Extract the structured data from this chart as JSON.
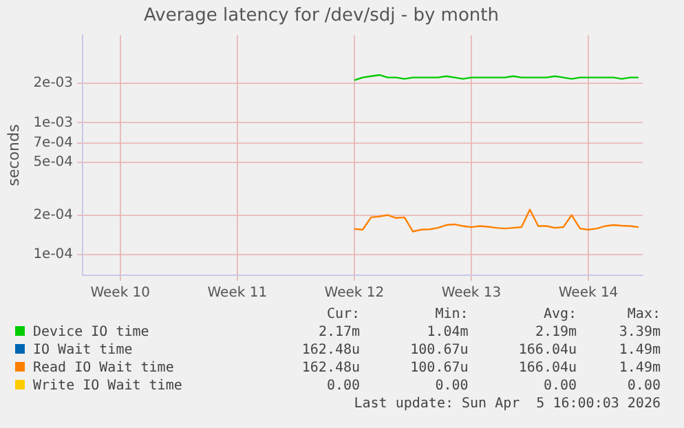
{
  "chart_data": {
    "type": "line",
    "title": "Average latency for /dev/sdj - by month",
    "ylabel": "seconds",
    "log": "y",
    "grid": true,
    "legend": "bottom",
    "marker": "none",
    "line_style": "solid",
    "categories": [
      null,
      null,
      null,
      null,
      "Week 10",
      null,
      null,
      null,
      null,
      null,
      null,
      null,
      null,
      null,
      null,
      null,
      null,
      null,
      "Week 11",
      null,
      null,
      null,
      null,
      null,
      null,
      null,
      null,
      null,
      null,
      null,
      null,
      null,
      "Week 12",
      null,
      null,
      null,
      null,
      null,
      null,
      null,
      null,
      null,
      null,
      null,
      null,
      null,
      "Week 13",
      null,
      null,
      null,
      null,
      null,
      null,
      null,
      null,
      null,
      null,
      null,
      null,
      null,
      "Week 14",
      null,
      null,
      null,
      null,
      null,
      null
    ],
    "ylim": [
      7.5e-05,
      0.0046
    ],
    "yticks": [
      {
        "value": 0.0001,
        "label": "1e-04"
      },
      {
        "value": 0.0002,
        "label": "2e-04"
      },
      {
        "value": 0.0005,
        "label": "5e-04"
      },
      {
        "value": 0.0007,
        "label": "7e-04"
      },
      {
        "value": 0.001,
        "label": "1e-03"
      },
      {
        "value": 0.002,
        "label": "2e-03"
      }
    ],
    "series": [
      {
        "name": "Device IO time",
        "color": "#00cc00",
        "values": [
          null,
          null,
          null,
          null,
          null,
          null,
          null,
          null,
          null,
          null,
          null,
          null,
          null,
          null,
          null,
          null,
          null,
          null,
          null,
          null,
          null,
          null,
          null,
          null,
          null,
          null,
          null,
          null,
          null,
          null,
          null,
          null,
          0.0021,
          0.0022,
          0.00225,
          0.0023,
          0.0022,
          0.0022,
          0.00215,
          0.0022,
          0.0022,
          0.0022,
          0.0022,
          0.00225,
          0.0022,
          0.00215,
          0.0022,
          0.0022,
          0.0022,
          0.0022,
          0.0022,
          0.00225,
          0.0022,
          0.0022,
          0.0022,
          0.0022,
          0.00225,
          0.0022,
          0.00215,
          0.0022,
          0.0022,
          0.0022,
          0.0022,
          0.0022,
          0.00215,
          0.0022,
          0.0022
        ]
      },
      {
        "name": "IO Wait time",
        "color": "#0066b3",
        "values": [
          null,
          null,
          null,
          null,
          null,
          null,
          null,
          null,
          null,
          null,
          null,
          null,
          null,
          null,
          null,
          null,
          null,
          null,
          null,
          null,
          null,
          null,
          null,
          null,
          null,
          null,
          null,
          null,
          null,
          null,
          null,
          null,
          null,
          null,
          null,
          null,
          null,
          null,
          null,
          null,
          null,
          null,
          null,
          null,
          null,
          null,
          null,
          null,
          null,
          null,
          null,
          null,
          null,
          null,
          null,
          null,
          null,
          null,
          null,
          null,
          null,
          null,
          null,
          null,
          null,
          null,
          null
        ]
      },
      {
        "name": "Read IO Wait time",
        "color": "#ff8000",
        "values": [
          null,
          null,
          null,
          null,
          null,
          null,
          null,
          null,
          null,
          null,
          null,
          null,
          null,
          null,
          null,
          null,
          null,
          null,
          null,
          null,
          null,
          null,
          null,
          null,
          null,
          null,
          null,
          null,
          null,
          null,
          null,
          null,
          0.000157,
          0.000155,
          0.000192,
          0.000195,
          0.0002,
          0.00019,
          0.000192,
          0.00015,
          0.000155,
          0.000156,
          0.00016,
          0.000168,
          0.00017,
          0.000165,
          0.000162,
          0.000165,
          0.000163,
          0.00016,
          0.000158,
          0.00016,
          0.000162,
          0.00022,
          0.000165,
          0.000165,
          0.00016,
          0.000162,
          0.0002,
          0.000158,
          0.000155,
          0.000158,
          0.000165,
          0.000168,
          0.000166,
          0.000165,
          0.000162
        ]
      },
      {
        "name": "Write IO Wait time",
        "color": "#ffcc00",
        "values": [
          null,
          null,
          null,
          null,
          null,
          null,
          null,
          null,
          null,
          null,
          null,
          null,
          null,
          null,
          null,
          null,
          null,
          null,
          null,
          null,
          null,
          null,
          null,
          null,
          null,
          null,
          null,
          null,
          null,
          null,
          null,
          null,
          null,
          null,
          null,
          null,
          null,
          null,
          null,
          null,
          null,
          null,
          null,
          null,
          null,
          null,
          null,
          null,
          null,
          null,
          null,
          null,
          null,
          null,
          null,
          null,
          null,
          null,
          null,
          null,
          null,
          null,
          null,
          null,
          null,
          null,
          null
        ]
      }
    ],
    "annotations": [
      "Cur:",
      "Min:",
      "Avg:",
      "Max:",
      "2.17m",
      "1.04m",
      "2.19m",
      "3.39m",
      "162.48u",
      "100.67u",
      "166.04u",
      "1.49m",
      "162.48u",
      "100.67u",
      "166.04u",
      "1.49m",
      "0.00",
      "0.00",
      "0.00",
      "0.00",
      "Last update: Sun Apr  5 16:00:03 2026"
    ]
  }
}
